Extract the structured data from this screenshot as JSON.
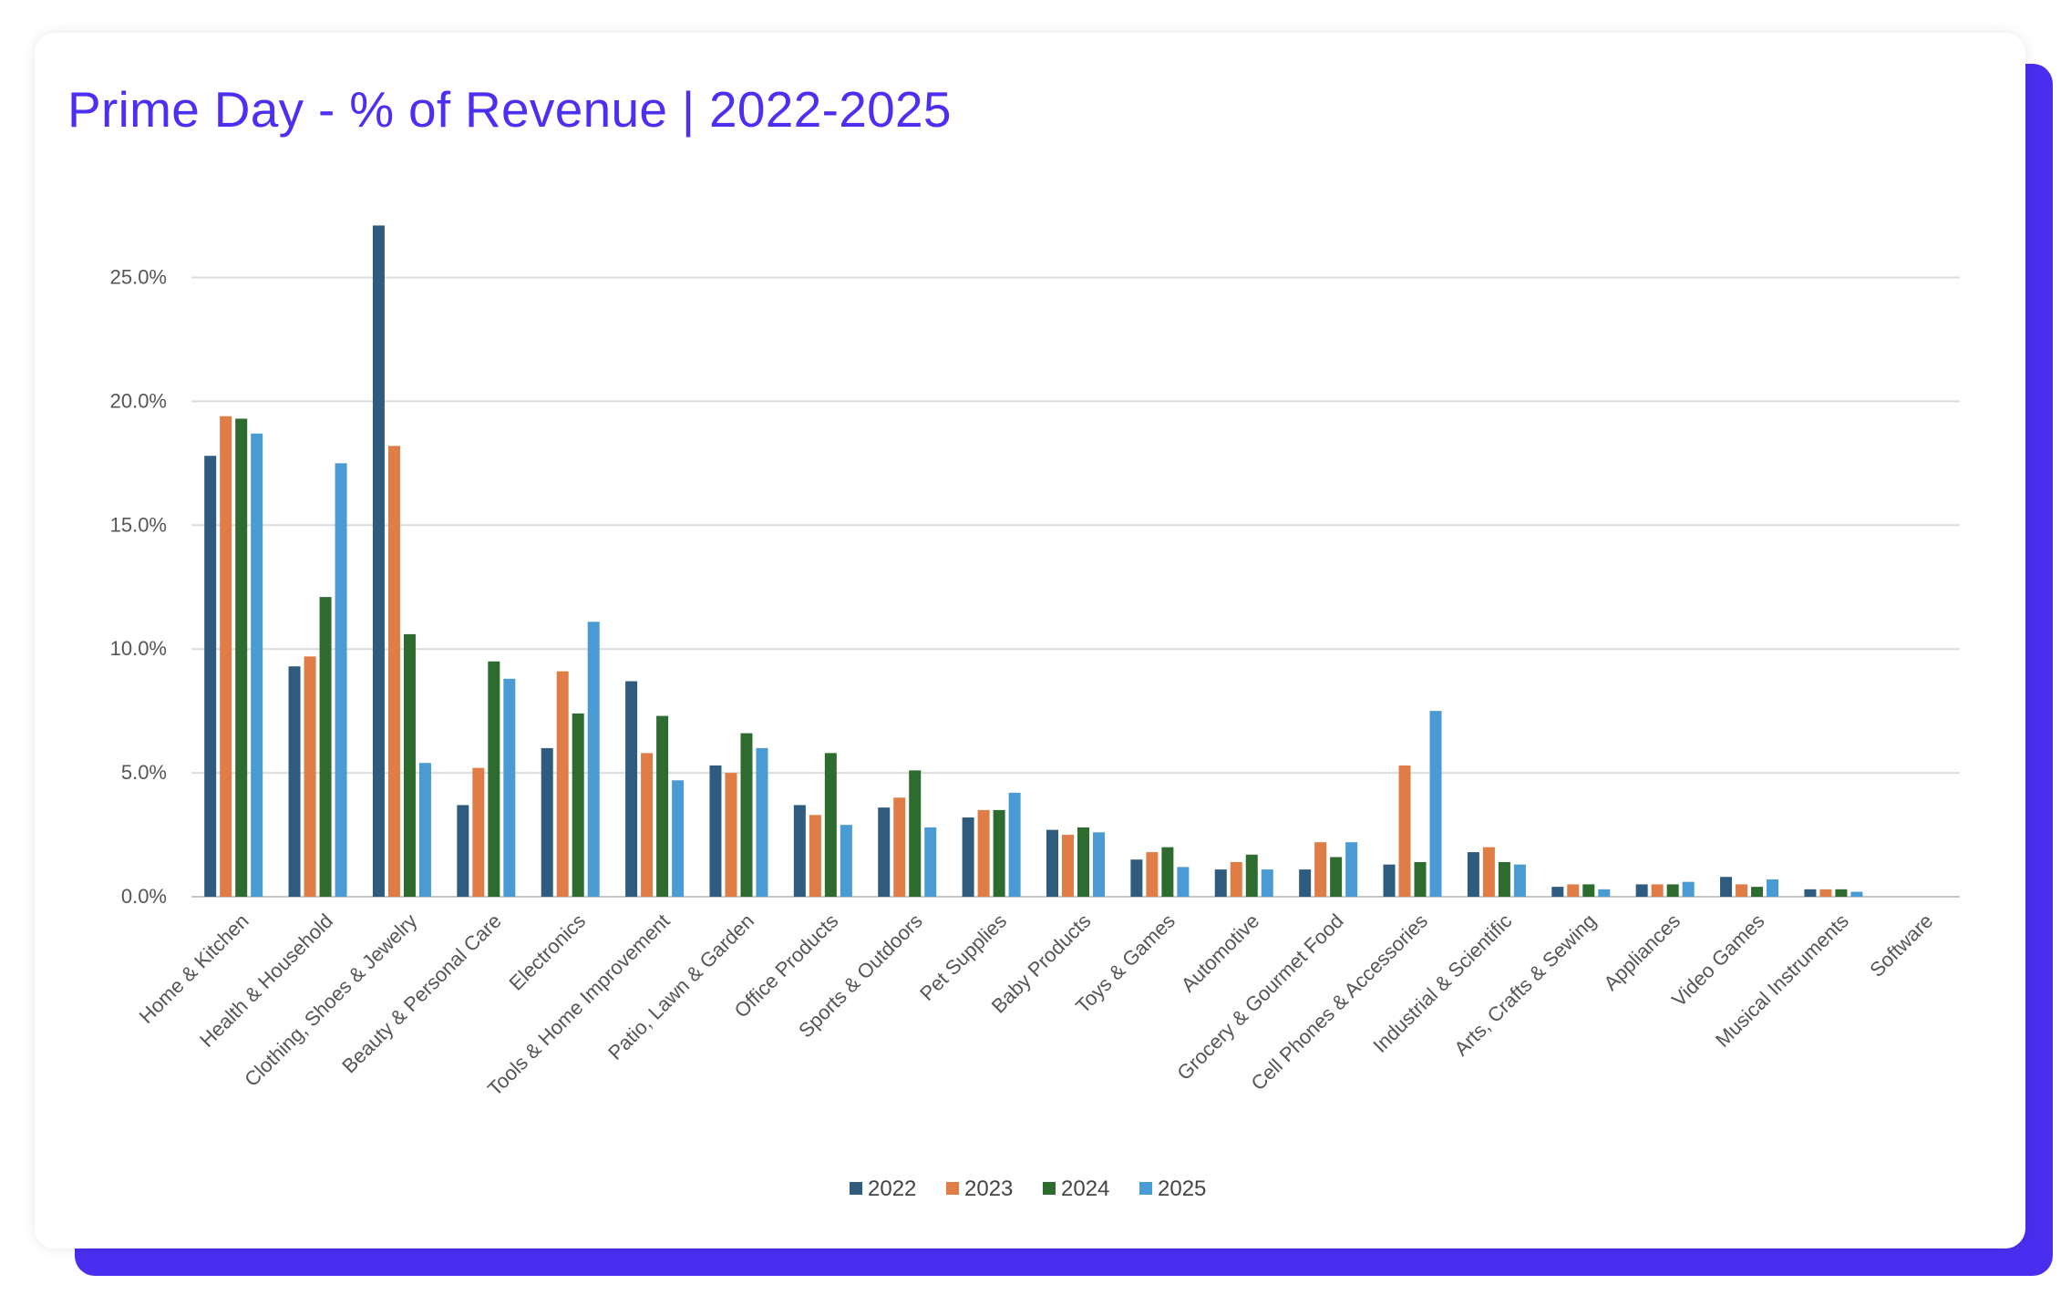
{
  "colors": {
    "accent": "#4b2ff2",
    "card_background": "#ffffff",
    "shadow_card": "#4a2ef0"
  },
  "chart_data": {
    "type": "bar",
    "title": "Prime Day - % of Revenue | 2022-2025",
    "xlabel": "",
    "ylabel": "",
    "ylim": [
      0,
      25
    ],
    "y_ticks": [
      "0.0%",
      "5.0%",
      "10.0%",
      "15.0%",
      "20.0%",
      "25.0%"
    ],
    "y_tick_values": [
      0,
      5,
      10,
      15,
      20,
      25
    ],
    "grid": true,
    "legend_position": "bottom",
    "categories": [
      "Home & Kitchen",
      "Health & Household",
      "Clothing, Shoes & Jewelry",
      "Beauty & Personal Care",
      "Electronics",
      "Tools & Home Improvement",
      "Patio, Lawn & Garden",
      "Office Products",
      "Sports & Outdoors",
      "Pet Supplies",
      "Baby Products",
      "Toys & Games",
      "Automotive",
      "Grocery & Gourmet Food",
      "Cell Phones & Accessories",
      "Industrial & Scientific",
      "Arts, Crafts & Sewing",
      "Appliances",
      "Video Games",
      "Musical Instruments",
      "Software"
    ],
    "series": [
      {
        "name": "2022",
        "color": "#2e5b7e",
        "values": [
          17.8,
          9.3,
          27.1,
          3.7,
          6.0,
          8.7,
          5.3,
          3.7,
          3.6,
          3.2,
          2.7,
          1.5,
          1.1,
          1.1,
          1.3,
          1.8,
          0.4,
          0.5,
          0.8,
          0.3,
          0.0
        ]
      },
      {
        "name": "2023",
        "color": "#e07c45",
        "values": [
          19.4,
          9.7,
          18.2,
          5.2,
          9.1,
          5.8,
          5.0,
          3.3,
          4.0,
          3.5,
          2.5,
          1.8,
          1.4,
          2.2,
          5.3,
          2.0,
          0.5,
          0.5,
          0.5,
          0.3,
          0.0
        ]
      },
      {
        "name": "2024",
        "color": "#2e6b2f",
        "values": [
          19.3,
          12.1,
          10.6,
          9.5,
          7.4,
          7.3,
          6.6,
          5.8,
          5.1,
          3.5,
          2.8,
          2.0,
          1.7,
          1.6,
          1.4,
          1.4,
          0.5,
          0.5,
          0.4,
          0.3,
          0.0
        ]
      },
      {
        "name": "2025",
        "color": "#4a9bd4",
        "values": [
          18.7,
          17.5,
          5.4,
          8.8,
          11.1,
          4.7,
          6.0,
          2.9,
          2.8,
          4.2,
          2.6,
          1.2,
          1.1,
          2.2,
          7.5,
          1.3,
          0.3,
          0.6,
          0.7,
          0.2,
          0.0
        ]
      }
    ]
  }
}
